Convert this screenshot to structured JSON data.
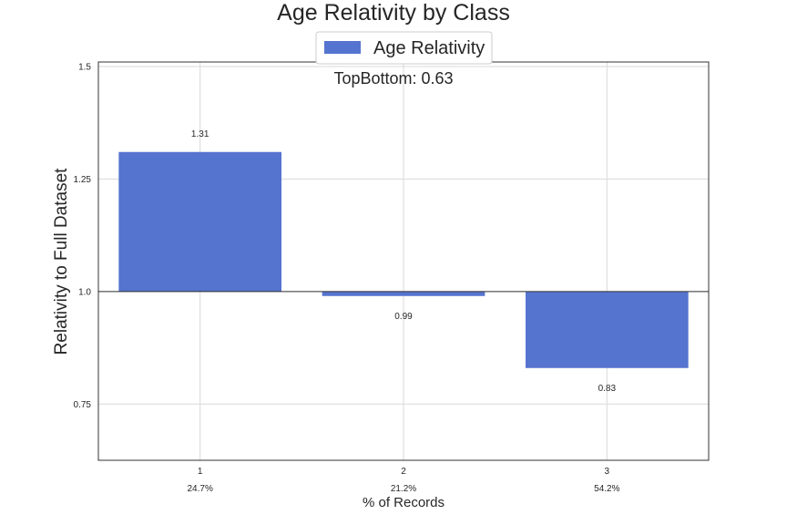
{
  "chart_data": {
    "type": "bar",
    "title": "Age Relativity by Class",
    "xlabel": "% of Records",
    "ylabel": "Relativity to Full Dataset",
    "categories": [
      "1",
      "2",
      "3"
    ],
    "category_shares": [
      "24.7%",
      "21.2%",
      "54.2%"
    ],
    "baseline": 1.0,
    "series": [
      {
        "name": "Age Relativity",
        "values": [
          1.31,
          0.99,
          0.83
        ],
        "value_labels": [
          "1.31",
          "0.99",
          "0.83"
        ],
        "color": "#5574cf"
      }
    ],
    "ylim": [
      0.625,
      1.51
    ],
    "yticks": [
      0.75,
      1.0,
      1.25,
      1.5
    ],
    "ytick_labels": [
      "0.75",
      "1.0",
      "1.25",
      "1.5"
    ],
    "annotation": "TopBottom: 0.63",
    "grid": true,
    "legend": "top-center"
  }
}
